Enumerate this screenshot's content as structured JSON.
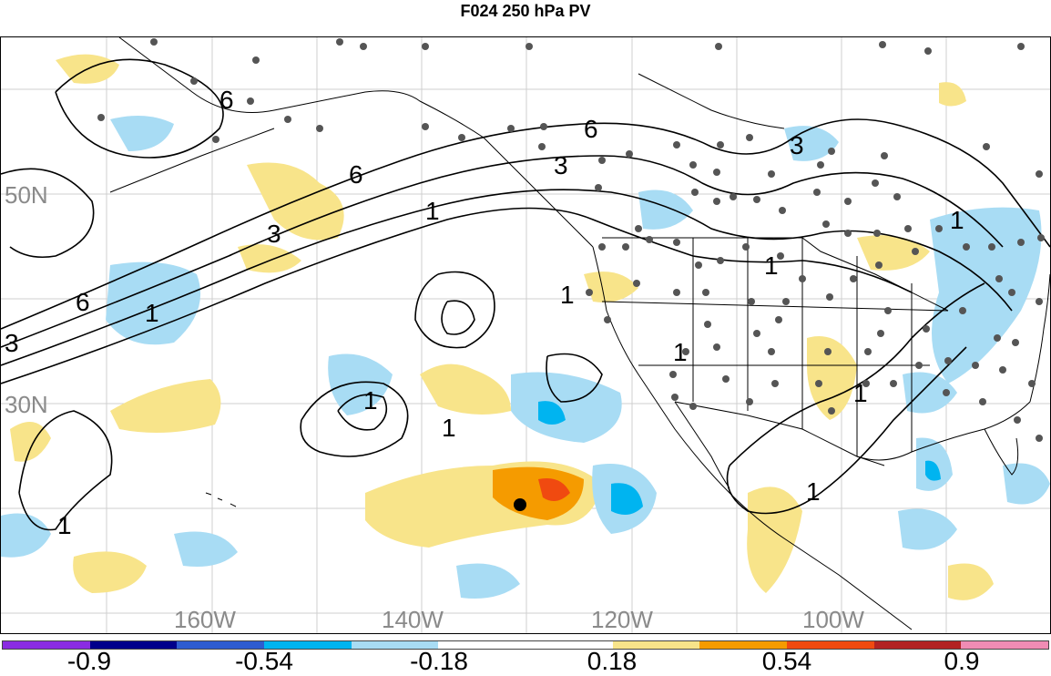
{
  "title": "F024 250 hPa PV",
  "map": {
    "lat_labels": [
      "50N",
      "30N"
    ],
    "lon_labels": [
      "160W",
      "140W",
      "120W",
      "100W"
    ],
    "contour_labels": [
      "6",
      "6",
      "6",
      "6",
      "3",
      "3",
      "3",
      "3",
      "1",
      "1",
      "1",
      "1",
      "1",
      "1",
      "1",
      "1",
      "1",
      "1",
      "1"
    ]
  },
  "colorbar": {
    "colors": [
      "#8a2be2",
      "#00008b",
      "#2e5cd0",
      "#00b4f0",
      "#a8dcf4",
      "#ffffff",
      "#ffffff",
      "#f8e48a",
      "#f59b00",
      "#f04a10",
      "#b22222",
      "#f08cb4"
    ],
    "tick_labels": [
      "-0.9",
      "-0.54",
      "-0.18",
      "0.18",
      "0.54",
      "0.9"
    ]
  }
}
